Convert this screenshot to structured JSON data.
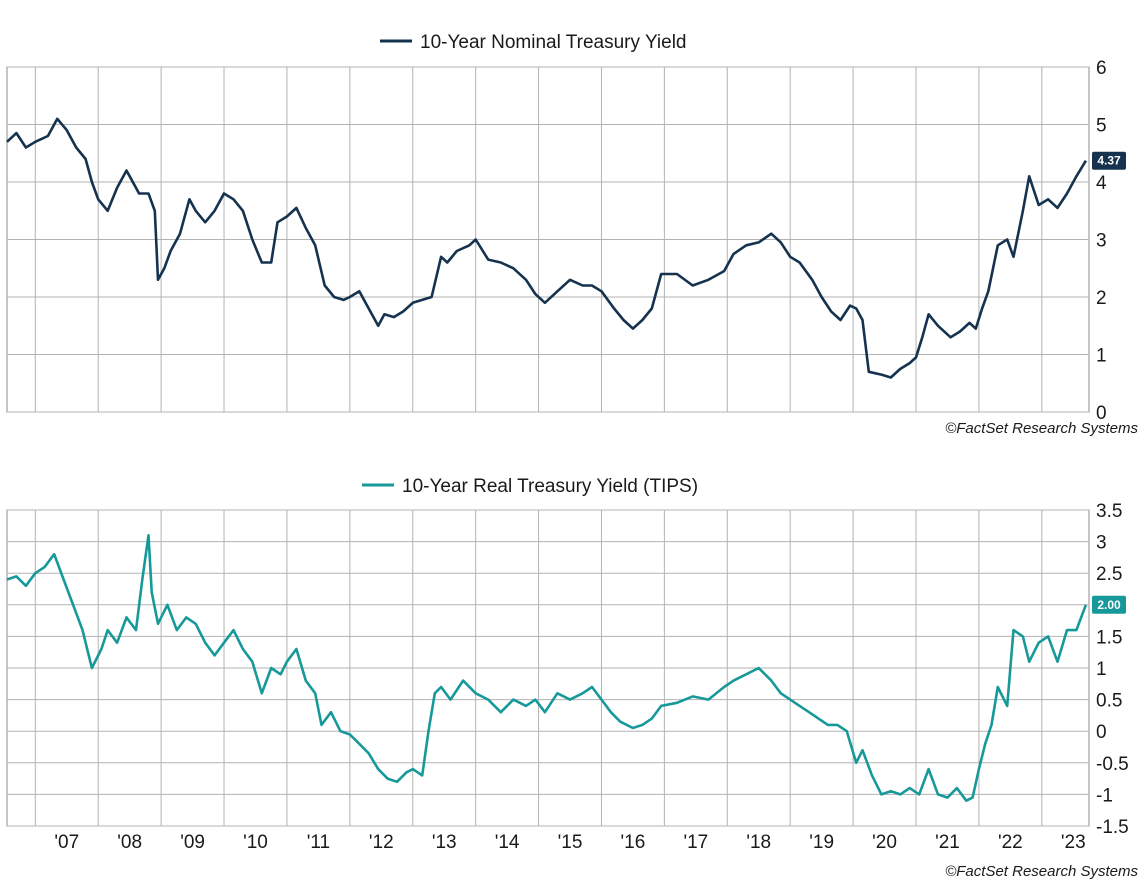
{
  "colors": {
    "nominal": "#15324f",
    "real": "#17999a",
    "grid": "#b3b3b3"
  },
  "chart_data": [
    {
      "type": "line",
      "title": "",
      "legend": "10-Year Nominal Treasury Yield",
      "legend_position": "top-center",
      "credit": "©FactSet Research Systems",
      "y_axis_side": "right",
      "ylim": [
        0,
        6
      ],
      "yticks": [
        0,
        1,
        2,
        3,
        4,
        5,
        6
      ],
      "ytick_labels": [
        "0",
        "1",
        "2",
        "3",
        "4",
        "5",
        "6"
      ],
      "xlim": [
        2006.55,
        2023.75
      ],
      "grid": true,
      "last_value_label": "4.37",
      "series": [
        {
          "name": "10-Year Nominal Treasury Yield",
          "x": [
            2006.55,
            2006.7,
            2006.85,
            2007.0,
            2007.2,
            2007.35,
            2007.5,
            2007.65,
            2007.8,
            2007.9,
            2008.0,
            2008.15,
            2008.3,
            2008.45,
            2008.55,
            2008.65,
            2008.8,
            2008.9,
            2008.95,
            2009.05,
            2009.15,
            2009.3,
            2009.45,
            2009.55,
            2009.7,
            2009.85,
            2010.0,
            2010.15,
            2010.3,
            2010.45,
            2010.6,
            2010.75,
            2010.85,
            2011.0,
            2011.15,
            2011.3,
            2011.45,
            2011.6,
            2011.75,
            2011.9,
            2012.0,
            2012.15,
            2012.3,
            2012.45,
            2012.55,
            2012.7,
            2012.85,
            2013.0,
            2013.15,
            2013.3,
            2013.45,
            2013.55,
            2013.7,
            2013.9,
            2014.0,
            2014.2,
            2014.4,
            2014.6,
            2014.8,
            2014.95,
            2015.1,
            2015.3,
            2015.5,
            2015.7,
            2015.85,
            2016.0,
            2016.2,
            2016.35,
            2016.5,
            2016.65,
            2016.8,
            2016.95,
            2017.2,
            2017.45,
            2017.7,
            2017.95,
            2018.1,
            2018.3,
            2018.5,
            2018.7,
            2018.85,
            2019.0,
            2019.15,
            2019.35,
            2019.5,
            2019.65,
            2019.8,
            2019.95,
            2020.05,
            2020.15,
            2020.25,
            2020.45,
            2020.6,
            2020.75,
            2020.9,
            2021.0,
            2021.1,
            2021.2,
            2021.35,
            2021.55,
            2021.7,
            2021.85,
            2021.95,
            2022.05,
            2022.15,
            2022.3,
            2022.45,
            2022.55,
            2022.7,
            2022.8,
            2022.95,
            2023.1,
            2023.25,
            2023.4,
            2023.55,
            2023.7
          ],
          "values": [
            4.7,
            4.85,
            4.6,
            4.7,
            4.8,
            5.1,
            4.9,
            4.6,
            4.4,
            4.0,
            3.7,
            3.5,
            3.9,
            4.2,
            4.0,
            3.8,
            3.8,
            3.5,
            2.3,
            2.5,
            2.8,
            3.1,
            3.7,
            3.5,
            3.3,
            3.5,
            3.8,
            3.7,
            3.5,
            3.0,
            2.6,
            2.6,
            3.3,
            3.4,
            3.55,
            3.2,
            2.9,
            2.2,
            2.0,
            1.95,
            2.0,
            2.1,
            1.8,
            1.5,
            1.7,
            1.65,
            1.75,
            1.9,
            1.95,
            2.0,
            2.7,
            2.6,
            2.8,
            2.9,
            3.0,
            2.65,
            2.6,
            2.5,
            2.3,
            2.05,
            1.9,
            2.1,
            2.3,
            2.2,
            2.2,
            2.1,
            1.8,
            1.6,
            1.45,
            1.6,
            1.8,
            2.4,
            2.4,
            2.2,
            2.3,
            2.45,
            2.75,
            2.9,
            2.95,
            3.1,
            2.95,
            2.7,
            2.6,
            2.3,
            2.0,
            1.75,
            1.6,
            1.85,
            1.8,
            1.6,
            0.7,
            0.65,
            0.6,
            0.75,
            0.85,
            0.95,
            1.3,
            1.7,
            1.5,
            1.3,
            1.4,
            1.55,
            1.45,
            1.8,
            2.1,
            2.9,
            3.0,
            2.7,
            3.5,
            4.1,
            3.6,
            3.7,
            3.55,
            3.8,
            4.1,
            4.37
          ]
        }
      ]
    },
    {
      "type": "line",
      "title": "",
      "legend": "10-Year Real Treasury Yield (TIPS)",
      "legend_position": "top-center",
      "credit": "©FactSet Research Systems",
      "y_axis_side": "right",
      "ylim": [
        -1.5,
        3.5
      ],
      "yticks": [
        -1.5,
        -1,
        -0.5,
        0,
        0.5,
        1,
        1.5,
        2,
        2.5,
        3,
        3.5
      ],
      "ytick_labels": [
        "-1.5",
        "-1",
        "-0.5",
        "0",
        "0.5",
        "1",
        "1.5",
        "2",
        "2.5",
        "3",
        "3.5"
      ],
      "xlim": [
        2006.55,
        2023.75
      ],
      "grid": true,
      "x_tick_labels": [
        "'07",
        "'08",
        "'09",
        "'10",
        "'11",
        "'12",
        "'13",
        "'14",
        "'15",
        "'16",
        "'17",
        "'18",
        "'19",
        "'20",
        "'21",
        "'22",
        "'23"
      ],
      "x_tick_years": [
        2007,
        2008,
        2009,
        2010,
        2011,
        2012,
        2013,
        2014,
        2015,
        2016,
        2017,
        2018,
        2019,
        2020,
        2021,
        2022,
        2023
      ],
      "last_value_label": "2.00",
      "series": [
        {
          "name": "10-Year Real Treasury Yield (TIPS)",
          "x": [
            2006.55,
            2006.7,
            2006.85,
            2007.0,
            2007.15,
            2007.3,
            2007.45,
            2007.6,
            2007.75,
            2007.9,
            2008.05,
            2008.15,
            2008.3,
            2008.45,
            2008.6,
            2008.7,
            2008.8,
            2008.85,
            2008.95,
            2009.1,
            2009.25,
            2009.4,
            2009.55,
            2009.7,
            2009.85,
            2010.0,
            2010.15,
            2010.3,
            2010.45,
            2010.6,
            2010.75,
            2010.9,
            2011.0,
            2011.15,
            2011.3,
            2011.45,
            2011.55,
            2011.7,
            2011.85,
            2012.0,
            2012.15,
            2012.3,
            2012.45,
            2012.6,
            2012.75,
            2012.9,
            2013.0,
            2013.15,
            2013.25,
            2013.35,
            2013.45,
            2013.6,
            2013.8,
            2014.0,
            2014.2,
            2014.4,
            2014.6,
            2014.8,
            2014.95,
            2015.1,
            2015.3,
            2015.5,
            2015.7,
            2015.85,
            2016.0,
            2016.15,
            2016.3,
            2016.5,
            2016.65,
            2016.8,
            2016.95,
            2017.2,
            2017.45,
            2017.7,
            2017.95,
            2018.1,
            2018.3,
            2018.5,
            2018.7,
            2018.85,
            2019.0,
            2019.15,
            2019.3,
            2019.45,
            2019.6,
            2019.75,
            2019.9,
            2020.05,
            2020.15,
            2020.3,
            2020.45,
            2020.6,
            2020.75,
            2020.9,
            2021.05,
            2021.2,
            2021.35,
            2021.5,
            2021.65,
            2021.8,
            2021.9,
            2022.0,
            2022.1,
            2022.2,
            2022.3,
            2022.45,
            2022.55,
            2022.7,
            2022.8,
            2022.95,
            2023.1,
            2023.25,
            2023.4,
            2023.55,
            2023.7
          ],
          "values": [
            2.4,
            2.45,
            2.3,
            2.5,
            2.6,
            2.8,
            2.4,
            2.0,
            1.6,
            1.0,
            1.3,
            1.6,
            1.4,
            1.8,
            1.6,
            2.4,
            3.1,
            2.2,
            1.7,
            2.0,
            1.6,
            1.8,
            1.7,
            1.4,
            1.2,
            1.4,
            1.6,
            1.3,
            1.1,
            0.6,
            1.0,
            0.9,
            1.1,
            1.3,
            0.8,
            0.6,
            0.1,
            0.3,
            0.0,
            -0.05,
            -0.2,
            -0.35,
            -0.6,
            -0.75,
            -0.8,
            -0.65,
            -0.6,
            -0.7,
            0.0,
            0.6,
            0.7,
            0.5,
            0.8,
            0.6,
            0.5,
            0.3,
            0.5,
            0.4,
            0.5,
            0.3,
            0.6,
            0.5,
            0.6,
            0.7,
            0.5,
            0.3,
            0.15,
            0.05,
            0.1,
            0.2,
            0.4,
            0.45,
            0.55,
            0.5,
            0.7,
            0.8,
            0.9,
            1.0,
            0.8,
            0.6,
            0.5,
            0.4,
            0.3,
            0.2,
            0.1,
            0.1,
            0.0,
            -0.5,
            -0.3,
            -0.7,
            -1.0,
            -0.95,
            -1.0,
            -0.9,
            -1.0,
            -0.6,
            -1.0,
            -1.05,
            -0.9,
            -1.1,
            -1.05,
            -0.6,
            -0.2,
            0.1,
            0.7,
            0.4,
            1.6,
            1.5,
            1.1,
            1.4,
            1.5,
            1.1,
            1.6,
            1.6,
            2.0
          ]
        }
      ]
    }
  ]
}
